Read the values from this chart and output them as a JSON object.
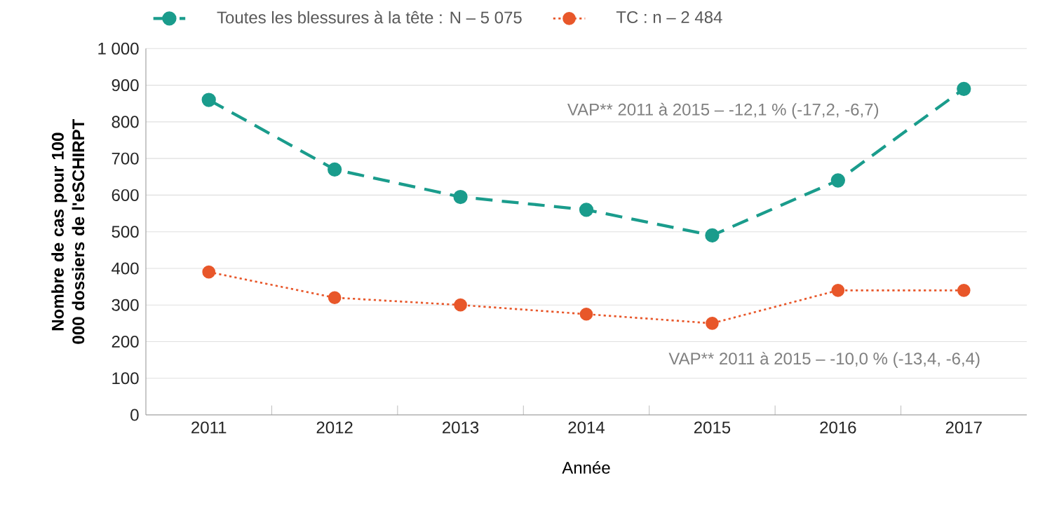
{
  "chart_data": {
    "type": "line",
    "xlabel": "Année",
    "ylabel": "Nombre de cas pour 100 000 dossiers de l'eSCHIRPT",
    "categories": [
      "2011",
      "2012",
      "2013",
      "2014",
      "2015",
      "2016",
      "2017"
    ],
    "series": [
      {
        "name": "Toutes les blessures à la tête : N – 5 075",
        "color": "#1a9c8c",
        "line_style": "dashed",
        "values": [
          860,
          670,
          595,
          560,
          490,
          640,
          890
        ]
      },
      {
        "name": "TC : n – 2 484",
        "color": "#e8572a",
        "line_style": "dotted",
        "values": [
          390,
          320,
          300,
          275,
          250,
          340,
          340
        ]
      }
    ],
    "ylim": [
      0,
      1000
    ],
    "yticks": [
      0,
      100,
      200,
      300,
      400,
      500,
      600,
      700,
      800,
      900,
      {
        "value": 1000,
        "label": "1 000"
      }
    ],
    "annotations": [
      "VAP** 2011 à 2015 – -12,1 % (-17,2, -6,7)",
      "VAP** 2011 à 2015 – -10,0 % (-13,4, -6,4)"
    ],
    "grid": "y",
    "legend": "top",
    "marker": "circle"
  }
}
